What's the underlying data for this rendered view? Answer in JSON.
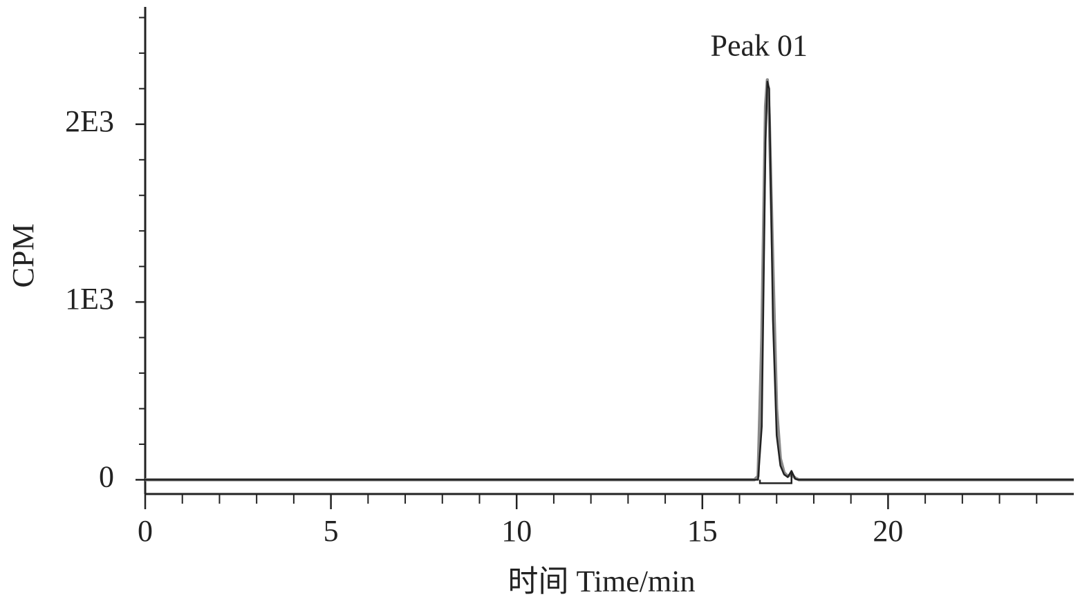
{
  "chart_data": {
    "type": "line",
    "annotation": "Peak 01",
    "x_label": "时间 Time/min",
    "y_label": "CPM",
    "x": [
      0,
      16.4,
      16.5,
      16.6,
      16.7,
      16.75,
      16.8,
      16.9,
      17.0,
      17.1,
      17.2,
      17.3,
      17.4,
      17.5,
      17.6,
      25
    ],
    "series": [
      {
        "color": "#8a8a8a",
        "values": [
          0,
          0,
          20,
          800,
          2100,
          2250,
          2050,
          1200,
          400,
          120,
          40,
          20,
          30,
          10,
          0,
          0
        ]
      },
      {
        "color": "#222222",
        "values": [
          0,
          0,
          0,
          300,
          1900,
          2240,
          2200,
          900,
          250,
          80,
          30,
          15,
          50,
          5,
          0,
          0
        ]
      }
    ],
    "integration_region": [
      16.55,
      17.4
    ],
    "xlim": [
      0,
      25
    ],
    "ylim": [
      -80,
      2660
    ],
    "xticks": [
      0,
      5,
      10,
      15,
      20
    ],
    "yticks": [
      0,
      {
        "value": 1000,
        "label": "1E3"
      },
      {
        "value": 2000,
        "label": "2E3"
      }
    ],
    "xminorticks": [
      1,
      2,
      3,
      4,
      6,
      7,
      8,
      9,
      11,
      12,
      13,
      14,
      16,
      17,
      18,
      19,
      21,
      22,
      23,
      24
    ],
    "yminorticks": [
      200,
      400,
      600,
      800,
      1200,
      1400,
      1600,
      1800,
      2200,
      2400,
      2600
    ],
    "grid": false
  }
}
